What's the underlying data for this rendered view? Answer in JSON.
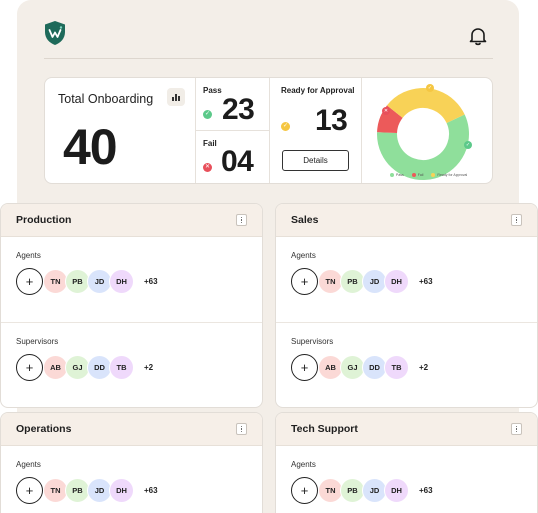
{
  "stats": {
    "total_label": "Total Onboarding",
    "total_value": "40",
    "pass_label": "Pass",
    "pass_value": "23",
    "fail_label": "Fail",
    "fail_value": "04",
    "ready_label": "Ready for Approval",
    "ready_value": "13",
    "details_label": "Details"
  },
  "chart_data": {
    "type": "pie",
    "categories": [
      "Pass",
      "Fail",
      "Ready for Approval"
    ],
    "values": [
      23,
      4,
      13
    ],
    "legend": [
      "Pass",
      "Fail",
      "Ready for Approval"
    ],
    "colors": [
      "#8fdf9b",
      "#ec5a5a",
      "#f8d257"
    ]
  },
  "colors": {
    "pass": "#5cc98a",
    "fail": "#e8505b",
    "ready": "#f5c642",
    "brand": "#1e6a5a"
  },
  "icons": {
    "logo": "shield-w-icon",
    "bell": "bell-icon",
    "chart": "bar-chart-icon",
    "kebab": "kebab-icon"
  },
  "cards": [
    {
      "title": "Production",
      "sections": [
        {
          "label": "Agents",
          "avatars": [
            "TN",
            "PB",
            "JD",
            "DH"
          ],
          "more": "+63"
        },
        {
          "label": "Supervisors",
          "avatars": [
            "AB",
            "GJ",
            "DD",
            "TB"
          ],
          "more": "+2"
        }
      ]
    },
    {
      "title": "Sales",
      "sections": [
        {
          "label": "Agents",
          "avatars": [
            "TN",
            "PB",
            "JD",
            "DH"
          ],
          "more": "+63"
        },
        {
          "label": "Supervisors",
          "avatars": [
            "AB",
            "GJ",
            "DD",
            "TB"
          ],
          "more": "+2"
        }
      ]
    },
    {
      "title": "Operations",
      "sections": [
        {
          "label": "Agents",
          "avatars": [
            "TN",
            "PB",
            "JD",
            "DH"
          ],
          "more": "+63"
        }
      ]
    },
    {
      "title": "Tech Support",
      "sections": [
        {
          "label": "Agents",
          "avatars": [
            "TN",
            "PB",
            "JD",
            "DH"
          ],
          "more": "+63"
        }
      ]
    }
  ],
  "avatar_colors": [
    "#fbd9d6",
    "#dff3d6",
    "#d9e4fb",
    "#efd9fb"
  ]
}
